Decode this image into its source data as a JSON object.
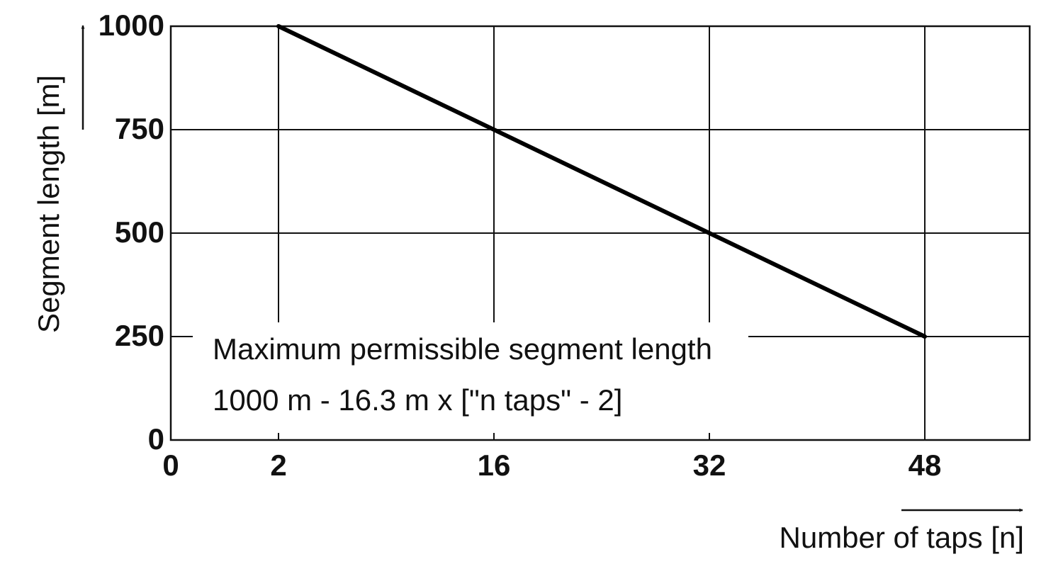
{
  "chart_data": {
    "type": "line",
    "x": [
      2,
      48
    ],
    "values": [
      1000,
      250
    ],
    "color": "#000000",
    "xticks": [
      0,
      2,
      16,
      32,
      48
    ],
    "ylim": [
      0,
      1000
    ],
    "yticks": [
      0,
      250,
      500,
      750,
      1000
    ],
    "grid": true,
    "x_label": "Number of taps [n]",
    "y_label": "Segment length [m]",
    "annotations": [
      "Maximum permissible segment length",
      "1000 m - 16.3 m x [\"n taps\" - 2]"
    ]
  }
}
